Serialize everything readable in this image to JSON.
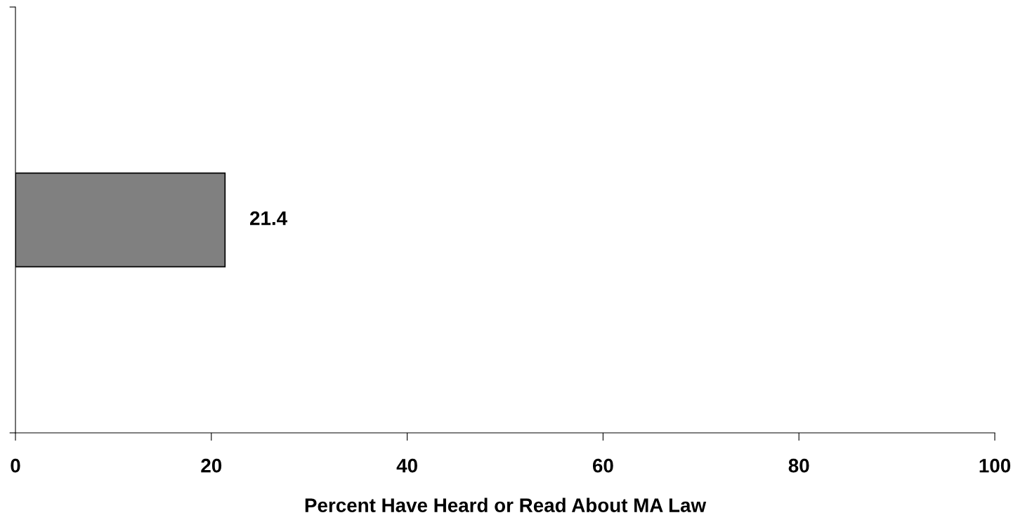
{
  "chart_data": {
    "type": "bar",
    "orientation": "horizontal",
    "categories": [
      null
    ],
    "values": [
      21.4
    ],
    "color": "#808080",
    "xlim": [
      0,
      100
    ],
    "xticks": [
      0,
      20,
      40,
      60,
      80,
      100
    ],
    "xlabel": "Percent Have Heard or Read About MA Law",
    "data_labels": true,
    "grid": false,
    "legend": false
  }
}
